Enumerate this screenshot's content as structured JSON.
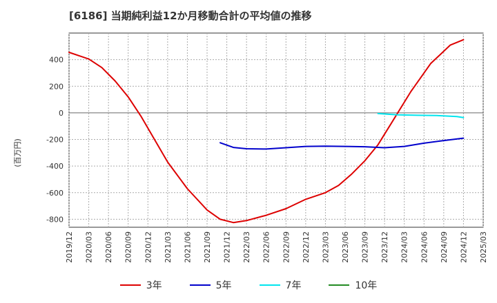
{
  "title": "[6186]  当期純利益12か月移動合計の平均値の推移",
  "chart_data": {
    "type": "line",
    "title": "[6186]  当期純利益12か月移動合計の平均値の推移",
    "ylabel": "(百万円)",
    "xlabel": "",
    "ylim": [
      -860,
      600
    ],
    "yticks": [
      400,
      200,
      0,
      -200,
      -400,
      -600,
      -800
    ],
    "xticks": [
      "2019/12",
      "2020/03",
      "2020/06",
      "2020/09",
      "2020/12",
      "2021/03",
      "2021/06",
      "2021/09",
      "2021/12",
      "2022/03",
      "2022/06",
      "2022/09",
      "2022/12",
      "2023/03",
      "2023/06",
      "2023/09",
      "2023/12",
      "2024/03",
      "2024/06",
      "2024/09",
      "2024/12",
      "2025/03"
    ],
    "grid": true,
    "legend_position": "bottom",
    "series": [
      {
        "name": "3年",
        "color": "#dd0000",
        "points": [
          [
            "2019/12",
            455
          ],
          [
            "2020/03",
            405
          ],
          [
            "2020/05",
            340
          ],
          [
            "2020/07",
            240
          ],
          [
            "2020/09",
            120
          ],
          [
            "2020/11",
            -30
          ],
          [
            "2021/01",
            -200
          ],
          [
            "2021/03",
            -370
          ],
          [
            "2021/06",
            -570
          ],
          [
            "2021/09",
            -730
          ],
          [
            "2021/11",
            -800
          ],
          [
            "2022/01",
            -825
          ],
          [
            "2022/03",
            -810
          ],
          [
            "2022/06",
            -770
          ],
          [
            "2022/09",
            -720
          ],
          [
            "2022/12",
            -650
          ],
          [
            "2023/03",
            -600
          ],
          [
            "2023/05",
            -545
          ],
          [
            "2023/07",
            -460
          ],
          [
            "2023/09",
            -360
          ],
          [
            "2023/11",
            -240
          ],
          [
            "2024/01",
            -80
          ],
          [
            "2024/04",
            160
          ],
          [
            "2024/07",
            370
          ],
          [
            "2024/10",
            510
          ],
          [
            "2024/12",
            550
          ]
        ]
      },
      {
        "name": "5年",
        "color": "#0000cc",
        "points": [
          [
            "2021/11",
            -225
          ],
          [
            "2022/01",
            -260
          ],
          [
            "2022/03",
            -270
          ],
          [
            "2022/06",
            -272
          ],
          [
            "2022/09",
            -262
          ],
          [
            "2022/12",
            -252
          ],
          [
            "2023/03",
            -250
          ],
          [
            "2023/06",
            -252
          ],
          [
            "2023/09",
            -255
          ],
          [
            "2023/12",
            -262
          ],
          [
            "2024/03",
            -252
          ],
          [
            "2024/06",
            -228
          ],
          [
            "2024/09",
            -208
          ],
          [
            "2024/12",
            -190
          ]
        ]
      },
      {
        "name": "7年",
        "color": "#00e5ee",
        "points": [
          [
            "2023/11",
            -5
          ],
          [
            "2024/02",
            -15
          ],
          [
            "2024/05",
            -18
          ],
          [
            "2024/08",
            -20
          ],
          [
            "2024/11",
            -28
          ],
          [
            "2024/12",
            -35
          ]
        ]
      },
      {
        "name": "10年",
        "color": "#228b22",
        "points": []
      }
    ]
  }
}
